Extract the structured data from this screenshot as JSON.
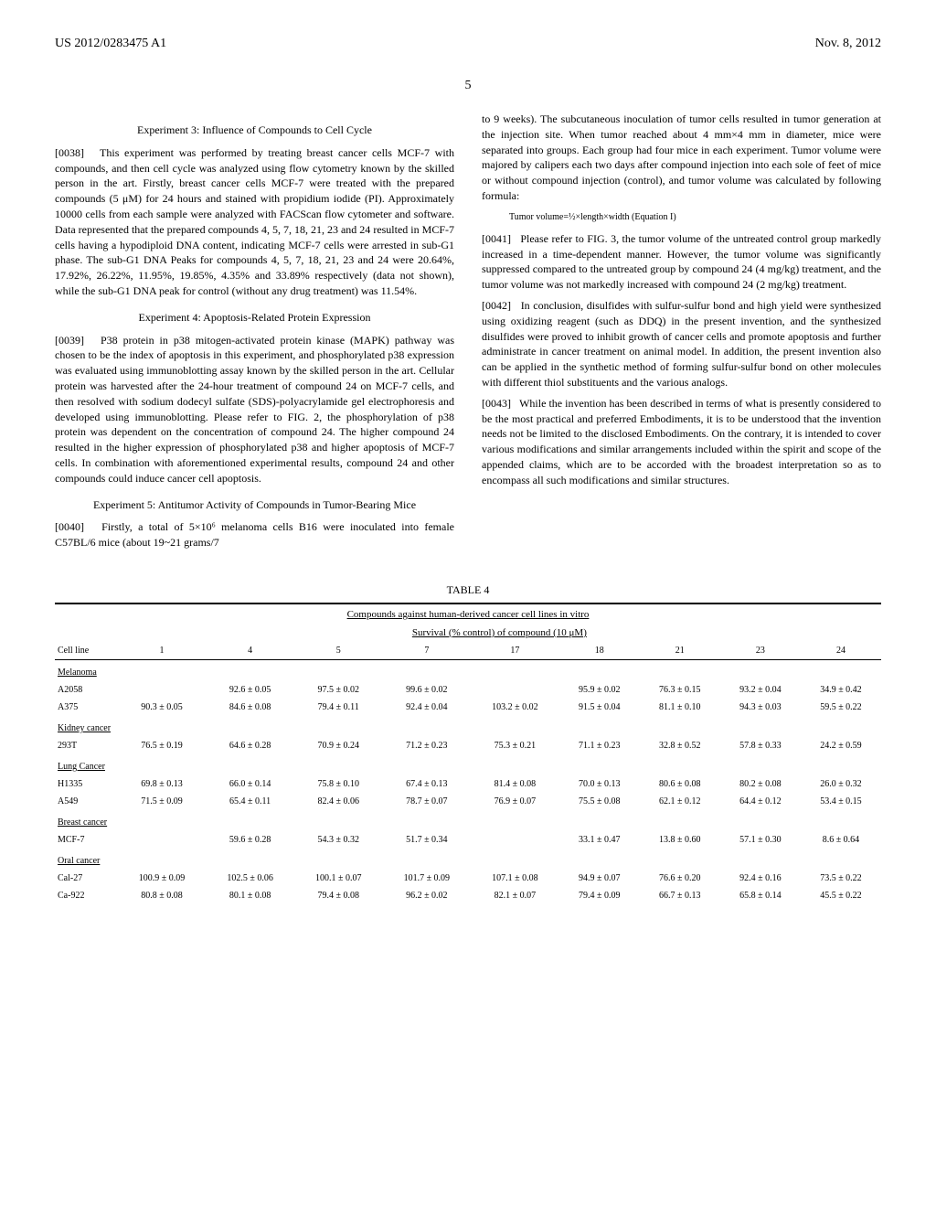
{
  "header": {
    "patent_no": "US 2012/0283475 A1",
    "date": "Nov. 8, 2012",
    "page": "5"
  },
  "left_col": {
    "exp3_title": "Experiment 3: Influence of Compounds to Cell Cycle",
    "p0038_num": "[0038]",
    "p0038": "This experiment was performed by treating breast cancer cells MCF-7 with compounds, and then cell cycle was analyzed using flow cytometry known by the skilled person in the art. Firstly, breast cancer cells MCF-7 were treated with the prepared compounds (5 μM) for 24 hours and stained with propidium iodide (PI). Approximately 10000 cells from each sample were analyzed with FACScan flow cytometer and software. Data represented that the prepared compounds 4, 5, 7, 18, 21, 23 and 24 resulted in MCF-7 cells having a hypodiploid DNA content, indicating MCF-7 cells were arrested in sub-G1 phase. The sub-G1 DNA Peaks for compounds 4, 5, 7, 18, 21, 23 and 24 were 20.64%, 17.92%, 26.22%, 11.95%, 19.85%, 4.35% and 33.89% respectively (data not shown), while the sub-G1 DNA peak for control (without any drug treatment) was 11.54%.",
    "exp4_title": "Experiment 4: Apoptosis-Related Protein Expression",
    "p0039_num": "[0039]",
    "p0039": "P38 protein in p38 mitogen-activated protein kinase (MAPK) pathway was chosen to be the index of apoptosis in this experiment, and phosphorylated p38 expression was evaluated using immunoblotting assay known by the skilled person in the art. Cellular protein was harvested after the 24-hour treatment of compound 24 on MCF-7 cells, and then resolved with sodium dodecyl sulfate (SDS)-polyacrylamide gel electrophoresis and developed using immunoblotting. Please refer to FIG. 2, the phosphorylation of p38 protein was dependent on the concentration of compound 24. The higher compound 24 resulted in the higher expression of phosphorylated p38 and higher apoptosis of MCF-7 cells. In combination with aforementioned experimental results, compound 24 and other compounds could induce cancer cell apoptosis.",
    "exp5_title": "Experiment 5: Antitumor Activity of Compounds in Tumor-Bearing Mice",
    "p0040_num": "[0040]",
    "p0040": "Firstly, a total of 5×10⁶ melanoma cells B16 were inoculated into female C57BL/6 mice (about 19~21 grams/7"
  },
  "right_col": {
    "p_top": "to 9 weeks). The subcutaneous inoculation of tumor cells resulted in tumor generation at the injection site. When tumor reached about 4 mm×4 mm in diameter, mice were separated into groups. Each group had four mice in each experiment. Tumor volume were majored by calipers each two days after compound injection into each sole of feet of mice or without compound injection (control), and tumor volume was calculated by following formula:",
    "equation": "Tumor volume=½×length×width (Equation I)",
    "p0041_num": "[0041]",
    "p0041": "Please refer to FIG. 3, the tumor volume of the untreated control group markedly increased in a time-dependent manner. However, the tumor volume was significantly suppressed compared to the untreated group by compound 24 (4 mg/kg) treatment, and the tumor volume was not markedly increased with compound 24 (2 mg/kg) treatment.",
    "p0042_num": "[0042]",
    "p0042": "In conclusion, disulfides with sulfur-sulfur bond and high yield were synthesized using oxidizing reagent (such as DDQ) in the present invention, and the synthesized disulfides were proved to inhibit growth of cancer cells and promote apoptosis and further administrate in cancer treatment on animal model. In addition, the present invention also can be applied in the synthetic method of forming sulfur-sulfur bond on other molecules with different thiol substituents and the various analogs.",
    "p0043_num": "[0043]",
    "p0043": "While the invention has been described in terms of what is presently considered to be the most practical and preferred Embodiments, it is to be understood that the invention needs not be limited to the disclosed Embodiments. On the contrary, it is intended to cover various modifications and similar arrangements included within the spirit and scope of the appended claims, which are to be accorded with the broadest interpretation so as to encompass all such modifications and similar structures."
  },
  "table4": {
    "label": "TABLE 4",
    "caption": "Compounds against human-derived cancer cell lines in vitro",
    "subcaption": "Survival (% control) of compound (10 μM)",
    "cols": [
      "Cell line",
      "1",
      "4",
      "5",
      "7",
      "17",
      "18",
      "21",
      "23",
      "24"
    ],
    "sections": [
      {
        "name": "Melanoma",
        "rows": [
          [
            "A2058",
            "",
            "92.6 ± 0.05",
            "97.5 ± 0.02",
            "99.6 ± 0.02",
            "",
            "95.9 ± 0.02",
            "76.3 ± 0.15",
            "93.2 ± 0.04",
            "34.9 ± 0.42"
          ],
          [
            "A375",
            "90.3 ± 0.05",
            "84.6 ± 0.08",
            "79.4 ± 0.11",
            "92.4 ± 0.04",
            "103.2 ± 0.02",
            "91.5 ± 0.04",
            "81.1 ± 0.10",
            "94.3 ± 0.03",
            "59.5 ± 0.22"
          ]
        ]
      },
      {
        "name": "Kidney cancer",
        "rows": [
          [
            "293T",
            "76.5 ± 0.19",
            "64.6 ± 0.28",
            "70.9 ± 0.24",
            "71.2 ± 0.23",
            "75.3 ± 0.21",
            "71.1 ± 0.23",
            "32.8 ± 0.52",
            "57.8 ± 0.33",
            "24.2 ± 0.59"
          ]
        ]
      },
      {
        "name": "Lung Cancer",
        "rows": [
          [
            "H1335",
            "69.8 ± 0.13",
            "66.0 ± 0.14",
            "75.8 ± 0.10",
            "67.4 ± 0.13",
            "81.4 ± 0.08",
            "70.0 ± 0.13",
            "80.6 ± 0.08",
            "80.2 ± 0.08",
            "26.0 ± 0.32"
          ],
          [
            "A549",
            "71.5 ± 0.09",
            "65.4 ± 0.11",
            "82.4 ± 0.06",
            "78.7 ± 0.07",
            "76.9 ± 0.07",
            "75.5 ± 0.08",
            "62.1 ± 0.12",
            "64.4 ± 0.12",
            "53.4 ± 0.15"
          ]
        ]
      },
      {
        "name": "Breast cancer",
        "rows": [
          [
            "MCF-7",
            "",
            "59.6 ± 0.28",
            "54.3 ± 0.32",
            "51.7 ± 0.34",
            "",
            "33.1 ± 0.47",
            "13.8 ± 0.60",
            "57.1 ± 0.30",
            "8.6 ± 0.64"
          ]
        ]
      },
      {
        "name": "Oral cancer",
        "rows": [
          [
            "Cal-27",
            "100.9 ± 0.09",
            "102.5 ± 0.06",
            "100.1 ± 0.07",
            "101.7 ± 0.09",
            "107.1 ± 0.08",
            "94.9 ± 0.07",
            "76.6 ± 0.20",
            "92.4 ± 0.16",
            "73.5 ± 0.22"
          ],
          [
            "Ca-922",
            "80.8 ± 0.08",
            "80.1 ± 0.08",
            "79.4 ± 0.08",
            "96.2 ± 0.02",
            "82.1 ± 0.07",
            "79.4 ± 0.09",
            "66.7 ± 0.13",
            "65.8 ± 0.14",
            "45.5 ± 0.22"
          ]
        ]
      }
    ]
  }
}
